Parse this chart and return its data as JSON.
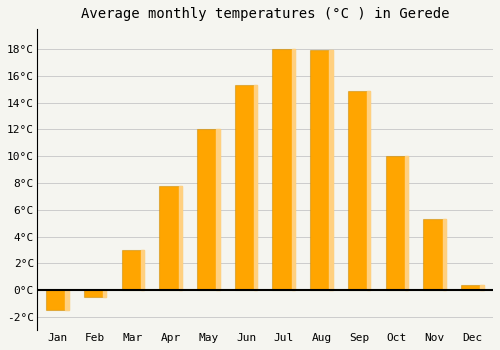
{
  "title": "Average monthly temperatures (°C ) in Gerede",
  "months": [
    "Jan",
    "Feb",
    "Mar",
    "Apr",
    "May",
    "Jun",
    "Jul",
    "Aug",
    "Sep",
    "Oct",
    "Nov",
    "Dec"
  ],
  "values": [
    -1.5,
    -0.5,
    3.0,
    7.8,
    12.0,
    15.3,
    18.0,
    17.9,
    14.9,
    10.0,
    5.3,
    0.4
  ],
  "bar_color": "#FFA500",
  "bar_edge_color": "#E8A000",
  "ylim": [
    -3,
    19.5
  ],
  "yticks": [
    -2,
    0,
    2,
    4,
    6,
    8,
    10,
    12,
    14,
    16,
    18
  ],
  "background_color": "#F5F5F0",
  "plot_bg_color": "#F5F5F0",
  "grid_color": "#CCCCCC",
  "title_fontsize": 10,
  "tick_fontsize": 8,
  "bar_width": 0.6
}
